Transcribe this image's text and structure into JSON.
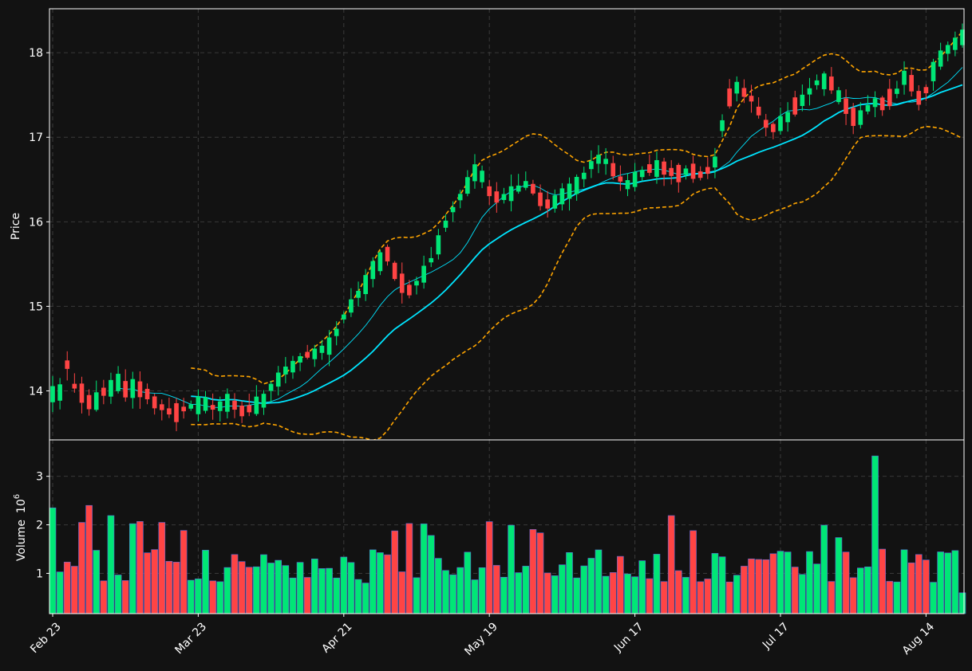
{
  "chart_data": {
    "type": "candlestick",
    "ylabel": "Price",
    "volume_label": "Volume",
    "volume_unit_exponent": "6",
    "x_tick_labels": [
      "Feb 23",
      "Mar 23",
      "Apr 21",
      "May 19",
      "Jun 17",
      "Jul 17",
      "Aug 14"
    ],
    "x_tick_indices": [
      0,
      20,
      40,
      60,
      80,
      100,
      120
    ],
    "price_ticks": [
      14,
      15,
      16,
      17,
      18
    ],
    "volume_ticks": [
      1,
      2,
      3
    ],
    "price_ylim": [
      13.42,
      18.52
    ],
    "volume_ylim": [
      0.17,
      3.75
    ],
    "bar_count": 126,
    "colors": {
      "background": "#121212",
      "up": "#00e676",
      "down": "#ff4444",
      "grid": "#3a3a3a",
      "axis": "#ffffff",
      "ma_fast": "#00e5ff",
      "ma_slow": "#00e5ff",
      "bands": "#ffa500",
      "volume_edge": "#5a6bd8"
    },
    "close_series": [
      13.98,
      14.0,
      14.3,
      14.05,
      13.95,
      13.85,
      13.9,
      13.98,
      14.05,
      14.12,
      14.0,
      14.05,
      14.0,
      13.95,
      13.85,
      13.8,
      13.75,
      13.72,
      13.78,
      13.82,
      13.85,
      13.86,
      13.8,
      13.83,
      13.88,
      13.82,
      13.75,
      13.78,
      13.85,
      13.9,
      14.05,
      14.15,
      14.25,
      14.3,
      14.38,
      14.42,
      14.45,
      14.5,
      14.55,
      14.7,
      14.88,
      15.02,
      15.15,
      15.28,
      15.45,
      15.55,
      15.6,
      15.4,
      15.25,
      15.18,
      15.28,
      15.4,
      15.55,
      15.75,
      15.98,
      16.15,
      16.3,
      16.45,
      16.6,
      16.55,
      16.35,
      16.28,
      16.3,
      16.35,
      16.4,
      16.45,
      16.38,
      16.25,
      16.2,
      16.25,
      16.32,
      16.38,
      16.45,
      16.55,
      16.68,
      16.75,
      16.72,
      16.6,
      16.5,
      16.45,
      16.52,
      16.58,
      16.62,
      16.65,
      16.62,
      16.58,
      16.55,
      16.6,
      16.58,
      16.55,
      16.6,
      16.72,
      17.15,
      17.45,
      17.6,
      17.52,
      17.45,
      17.3,
      17.15,
      17.1,
      17.18,
      17.25,
      17.35,
      17.45,
      17.55,
      17.65,
      17.68,
      17.62,
      17.5,
      17.35,
      17.22,
      17.25,
      17.35,
      17.42,
      17.38,
      17.45,
      17.55,
      17.72,
      17.62,
      17.45,
      17.55,
      17.8,
      17.95,
      18.05,
      18.12,
      18.2
    ]
  }
}
